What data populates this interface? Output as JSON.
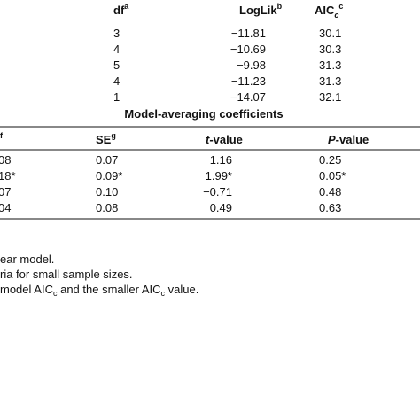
{
  "top_table": {
    "headers": [
      {
        "text": "df",
        "sup": "a"
      },
      {
        "text": "LogLik",
        "sup": "b"
      },
      {
        "text": "AIC",
        "sub": "c",
        "sup": "c"
      }
    ],
    "rows": [
      [
        "3",
        "−11.81",
        "30.1"
      ],
      [
        "4",
        "−10.69",
        "30.3"
      ],
      [
        "5",
        "−9.98",
        "31.3"
      ],
      [
        "4",
        "−11.23",
        "31.3"
      ],
      [
        "1",
        "−14.07",
        "32.1"
      ]
    ]
  },
  "section_title": "Model-averaging coefficients",
  "bottom_table": {
    "headers": [
      {
        "sup": "f"
      },
      {
        "text": "SE",
        "sup": "g"
      },
      {
        "italic": "t",
        "text": "-value"
      },
      {
        "italic": "P",
        "text": "-value"
      }
    ],
    "rows": [
      [
        "08",
        "0.07",
        "1.16",
        "0.25"
      ],
      [
        "18*",
        "0.09*",
        "1.99*",
        "0.05*"
      ],
      [
        "07",
        "0.10",
        "−0.71",
        "0.48"
      ],
      [
        "04",
        "0.08",
        "0.49",
        "0.63"
      ]
    ]
  },
  "footnotes": [
    [
      "ear model."
    ],
    [
      "ria for small sample sizes."
    ],
    [
      "model AIC",
      "c",
      " and the smaller AIC",
      "c",
      " value."
    ]
  ]
}
